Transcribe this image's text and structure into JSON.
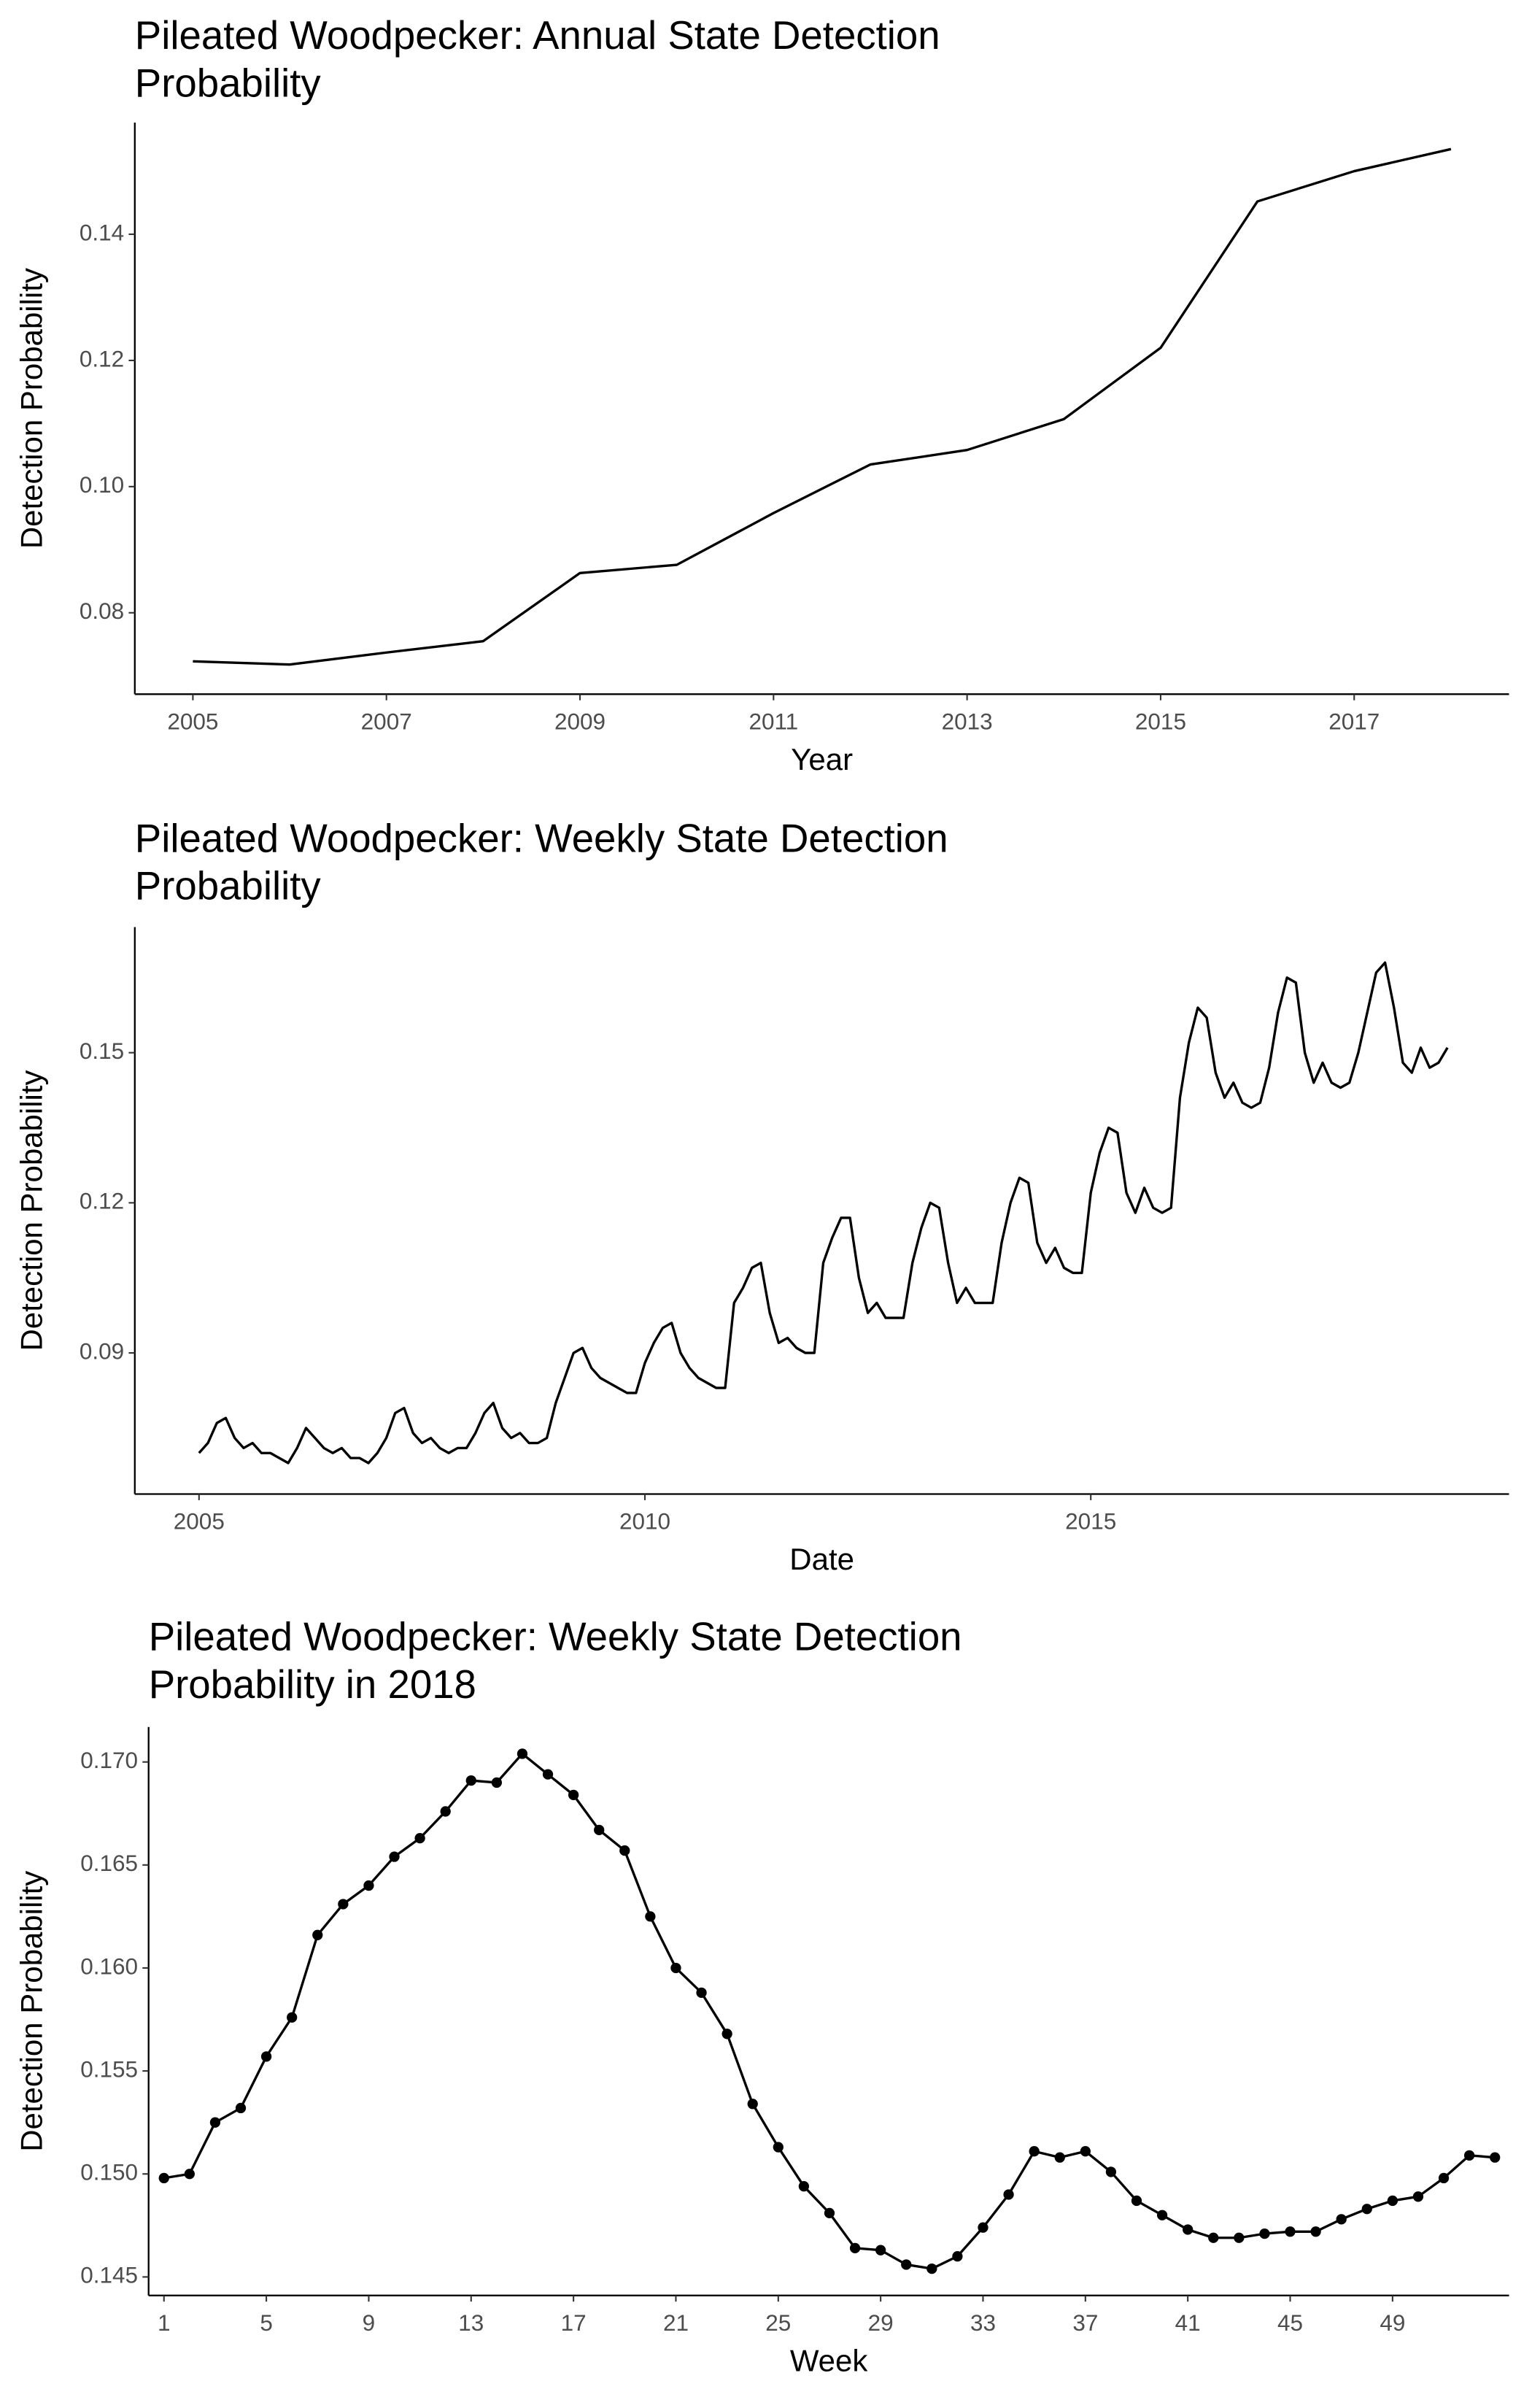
{
  "chart_data": [
    {
      "type": "line",
      "title": "Pileated Woodpecker: Annual State Detection Probability",
      "x_label": "Year",
      "y_label": "Detection Probability",
      "color": "#000000",
      "markers": false,
      "x": [
        2005,
        2006,
        2007,
        2008,
        2009,
        2010,
        2011,
        2012,
        2013,
        2014,
        2015,
        2016,
        2017,
        2018
      ],
      "values": [
        0.0723,
        0.0718,
        0.0737,
        0.0755,
        0.0863,
        0.0876,
        0.0958,
        0.1035,
        0.1058,
        0.1107,
        0.122,
        0.1452,
        0.15,
        0.1535
      ],
      "xlim": [
        2004.4,
        2018.6
      ],
      "xticks": [
        2005,
        2007,
        2009,
        2011,
        2013,
        2015,
        2017
      ],
      "ylim": [
        0.0671,
        0.1577
      ],
      "yticks": [
        {
          "value": 0.08,
          "label": "0.08"
        },
        {
          "value": 0.1,
          "label": "0.10"
        },
        {
          "value": 0.12,
          "label": "0.12"
        },
        {
          "value": 0.14,
          "label": "0.14"
        }
      ]
    },
    {
      "type": "line",
      "title": "Pileated Woodpecker: Weekly State Detection Probability",
      "x_label": "Date",
      "y_label": "Detection Probability",
      "color": "#000000",
      "markers": false,
      "x": [
        2005,
        2005.1,
        2005.2,
        2005.3,
        2005.4,
        2005.5,
        2005.6,
        2005.7,
        2005.8,
        2005.9,
        2006,
        2006.1,
        2006.2,
        2006.3,
        2006.4,
        2006.5,
        2006.6,
        2006.7,
        2006.8,
        2006.9,
        2007,
        2007.1,
        2007.2,
        2007.3,
        2007.4,
        2007.5,
        2007.6,
        2007.7,
        2007.8,
        2007.9,
        2008,
        2008.1,
        2008.2,
        2008.3,
        2008.4,
        2008.5,
        2008.6,
        2008.7,
        2008.8,
        2008.9,
        2009,
        2009.1,
        2009.2,
        2009.3,
        2009.4,
        2009.5,
        2009.6,
        2009.7,
        2009.8,
        2009.9,
        2010,
        2010.1,
        2010.2,
        2010.3,
        2010.4,
        2010.5,
        2010.6,
        2010.7,
        2010.8,
        2010.9,
        2011,
        2011.1,
        2011.2,
        2011.3,
        2011.4,
        2011.5,
        2011.6,
        2011.7,
        2011.8,
        2011.9,
        2012,
        2012.1,
        2012.2,
        2012.3,
        2012.4,
        2012.5,
        2012.6,
        2012.7,
        2012.8,
        2012.9,
        2013,
        2013.1,
        2013.2,
        2013.3,
        2013.4,
        2013.5,
        2013.6,
        2013.7,
        2013.8,
        2013.9,
        2014,
        2014.1,
        2014.2,
        2014.3,
        2014.4,
        2014.5,
        2014.6,
        2014.7,
        2014.8,
        2014.9,
        2015,
        2015.1,
        2015.2,
        2015.3,
        2015.4,
        2015.5,
        2015.6,
        2015.7,
        2015.8,
        2015.9,
        2016,
        2016.1,
        2016.2,
        2016.3,
        2016.4,
        2016.5,
        2016.6,
        2016.7,
        2016.8,
        2016.9,
        2017,
        2017.1,
        2017.2,
        2017.3,
        2017.4,
        2017.5,
        2017.6,
        2017.7,
        2017.8,
        2017.9,
        2018,
        2018.1,
        2018.2,
        2018.3,
        2018.4,
        2018.5,
        2018.6,
        2018.7,
        2018.8,
        2018.9,
        2019
      ],
      "values": [
        0.07,
        0.072,
        0.076,
        0.077,
        0.073,
        0.071,
        0.072,
        0.07,
        0.07,
        0.069,
        0.068,
        0.071,
        0.075,
        0.073,
        0.071,
        0.07,
        0.071,
        0.069,
        0.069,
        0.068,
        0.07,
        0.073,
        0.078,
        0.079,
        0.074,
        0.072,
        0.073,
        0.071,
        0.07,
        0.071,
        0.071,
        0.074,
        0.078,
        0.08,
        0.075,
        0.073,
        0.074,
        0.072,
        0.072,
        0.073,
        0.08,
        0.085,
        0.09,
        0.091,
        0.087,
        0.085,
        0.084,
        0.083,
        0.082,
        0.082,
        0.088,
        0.092,
        0.095,
        0.096,
        0.09,
        0.087,
        0.085,
        0.084,
        0.083,
        0.083,
        0.1,
        0.103,
        0.107,
        0.108,
        0.098,
        0.092,
        0.093,
        0.091,
        0.09,
        0.09,
        0.108,
        0.113,
        0.117,
        0.117,
        0.105,
        0.098,
        0.1,
        0.097,
        0.097,
        0.097,
        0.108,
        0.115,
        0.12,
        0.119,
        0.108,
        0.1,
        0.103,
        0.1,
        0.1,
        0.1,
        0.112,
        0.12,
        0.125,
        0.124,
        0.112,
        0.108,
        0.111,
        0.107,
        0.106,
        0.106,
        0.122,
        0.13,
        0.135,
        0.134,
        0.122,
        0.118,
        0.123,
        0.119,
        0.118,
        0.119,
        0.141,
        0.152,
        0.159,
        0.157,
        0.146,
        0.141,
        0.144,
        0.14,
        0.139,
        0.14,
        0.147,
        0.158,
        0.165,
        0.164,
        0.15,
        0.144,
        0.148,
        0.144,
        0.143,
        0.144,
        0.15,
        0.158,
        0.166,
        0.168,
        0.159,
        0.148,
        0.146,
        0.151,
        0.147,
        0.148,
        0.151
      ],
      "xlim": [
        2004.28,
        2019.69
      ],
      "xticks": [
        2005,
        2010,
        2015
      ],
      "ylim": [
        0.0618,
        0.1751
      ],
      "yticks": [
        {
          "value": 0.09,
          "label": "0.09"
        },
        {
          "value": 0.12,
          "label": "0.12"
        },
        {
          "value": 0.15,
          "label": "0.15"
        }
      ]
    },
    {
      "type": "line",
      "title": "Pileated Woodpecker: Weekly State Detection Probability in 2018",
      "x_label": "Week",
      "y_label": "Detection Probability",
      "color": "#000000",
      "markers": true,
      "x": [
        1,
        2,
        3,
        4,
        5,
        6,
        7,
        8,
        9,
        10,
        11,
        12,
        13,
        14,
        15,
        16,
        17,
        18,
        19,
        20,
        21,
        22,
        23,
        24,
        25,
        26,
        27,
        28,
        29,
        30,
        31,
        32,
        33,
        34,
        35,
        36,
        37,
        38,
        39,
        40,
        41,
        42,
        43,
        44,
        45,
        46,
        47,
        48,
        49,
        50,
        51,
        52,
        53
      ],
      "values": [
        0.1498,
        0.15,
        0.1525,
        0.1532,
        0.1557,
        0.1576,
        0.1616,
        0.1631,
        0.164,
        0.1654,
        0.1663,
        0.1676,
        0.1691,
        0.169,
        0.1704,
        0.1694,
        0.1684,
        0.1667,
        0.1657,
        0.1625,
        0.16,
        0.1588,
        0.1568,
        0.1534,
        0.1513,
        0.1494,
        0.1481,
        0.1464,
        0.1463,
        0.1456,
        0.1454,
        0.146,
        0.1474,
        0.149,
        0.1511,
        0.1508,
        0.1511,
        0.1501,
        0.1487,
        0.148,
        0.1473,
        0.1469,
        0.1469,
        0.1471,
        0.1472,
        0.1472,
        0.1478,
        0.1483,
        0.1487,
        0.1489,
        0.1498,
        0.1509,
        0.1508
      ],
      "xlim": [
        0.4,
        53.55
      ],
      "xticks": [
        1,
        5,
        9,
        13,
        17,
        21,
        25,
        29,
        33,
        37,
        41,
        45,
        49
      ],
      "ylim": [
        0.1441,
        0.1717
      ],
      "yticks": [
        {
          "value": 0.145,
          "label": "0.145"
        },
        {
          "value": 0.15,
          "label": "0.150"
        },
        {
          "value": 0.155,
          "label": "0.155"
        },
        {
          "value": 0.16,
          "label": "0.160"
        },
        {
          "value": 0.165,
          "label": "0.165"
        },
        {
          "value": 0.17,
          "label": "0.170"
        }
      ]
    }
  ]
}
